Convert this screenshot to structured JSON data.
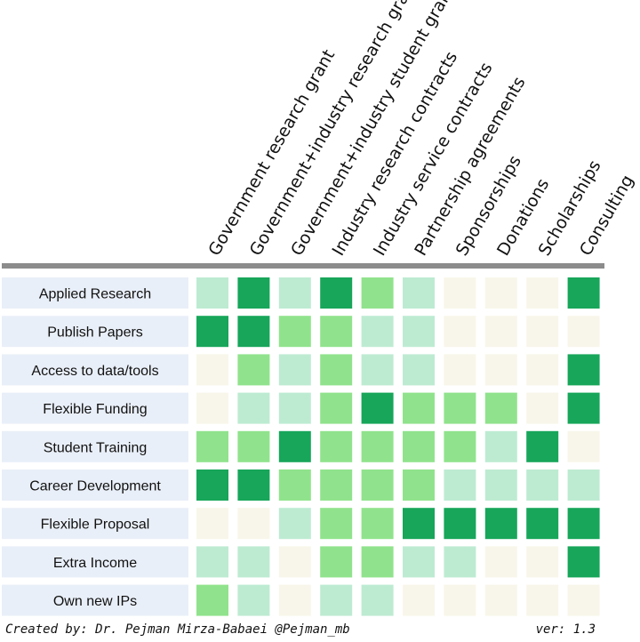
{
  "chart_data": {
    "type": "heatmap",
    "columns": [
      "Government research grant",
      "Government+industry research grant",
      "Government+industry student grant",
      "Industry research contracts",
      "Industry service contracts",
      "Partnership agreements",
      "Sponsorships",
      "Donations",
      "Scholarships",
      "Consulting"
    ],
    "rows": [
      "Applied Research",
      "Publish Papers",
      "Access to data/tools",
      "Flexible Funding",
      "Student Training",
      "Career Development",
      "Flexible Proposal",
      "Extra Income",
      "Own new IPs"
    ],
    "values": [
      [
        1,
        3,
        1,
        3,
        2,
        1,
        0,
        0,
        0,
        3
      ],
      [
        3,
        3,
        2,
        2,
        1,
        1,
        0,
        0,
        0,
        0
      ],
      [
        0,
        2,
        1,
        2,
        1,
        1,
        0,
        0,
        0,
        3
      ],
      [
        0,
        1,
        1,
        2,
        3,
        2,
        2,
        2,
        0,
        3
      ],
      [
        2,
        2,
        3,
        2,
        2,
        2,
        2,
        1,
        3,
        0
      ],
      [
        3,
        3,
        2,
        2,
        2,
        2,
        1,
        1,
        1,
        1
      ],
      [
        0,
        0,
        1,
        2,
        2,
        3,
        3,
        3,
        3,
        3
      ],
      [
        1,
        1,
        0,
        2,
        2,
        1,
        1,
        0,
        0,
        3
      ],
      [
        2,
        1,
        0,
        1,
        1,
        0,
        0,
        0,
        0,
        0
      ]
    ],
    "level_colors": [
      "#f8f6ea",
      "#bdebd2",
      "#90e38c",
      "#17a65a"
    ],
    "row_label_bg": "#e9eff8",
    "header_rule_color": "#8c8c8c"
  },
  "footer": {
    "credit": "Created by: Dr. Pejman Mirza-Babaei @Pejman_mb",
    "version": "ver: 1.3"
  }
}
